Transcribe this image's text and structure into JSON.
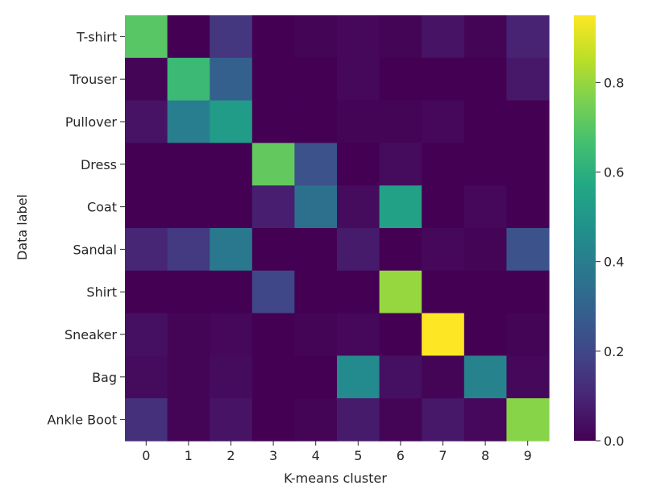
{
  "chart_data": {
    "type": "heatmap",
    "title": "",
    "xlabel": "K-means cluster",
    "ylabel": "Data label",
    "x_categories": [
      "0",
      "1",
      "2",
      "3",
      "4",
      "5",
      "6",
      "7",
      "8",
      "9"
    ],
    "y_categories": [
      "T-shirt",
      "Trouser",
      "Pullover",
      "Dress",
      "Coat",
      "Sandal",
      "Shirt",
      "Sneaker",
      "Bag",
      "Ankle Boot"
    ],
    "values": [
      [
        0.7,
        0.0,
        0.15,
        0.0,
        0.01,
        0.02,
        0.01,
        0.05,
        0.01,
        0.09
      ],
      [
        0.01,
        0.64,
        0.29,
        0.0,
        0.0,
        0.02,
        0.0,
        0.0,
        0.0,
        0.06
      ],
      [
        0.05,
        0.4,
        0.52,
        0.0,
        0.0,
        0.01,
        0.01,
        0.02,
        0.0,
        0.0
      ],
      [
        0.0,
        0.0,
        0.0,
        0.72,
        0.24,
        0.0,
        0.03,
        0.0,
        0.0,
        0.0
      ],
      [
        0.0,
        0.0,
        0.0,
        0.08,
        0.35,
        0.03,
        0.54,
        0.0,
        0.02,
        0.0
      ],
      [
        0.1,
        0.16,
        0.38,
        0.0,
        0.0,
        0.07,
        0.0,
        0.02,
        0.01,
        0.24
      ],
      [
        0.0,
        0.0,
        0.0,
        0.2,
        0.0,
        0.0,
        0.8,
        0.0,
        0.0,
        0.0
      ],
      [
        0.04,
        0.01,
        0.02,
        0.0,
        0.01,
        0.02,
        0.0,
        0.95,
        0.0,
        0.01
      ],
      [
        0.03,
        0.01,
        0.03,
        0.0,
        0.0,
        0.45,
        0.04,
        0.01,
        0.42,
        0.02
      ],
      [
        0.13,
        0.01,
        0.05,
        0.0,
        0.01,
        0.07,
        0.01,
        0.06,
        0.02,
        0.78
      ]
    ],
    "vmin": 0.0,
    "vmax": 0.95,
    "colormap": "viridis",
    "colorbar_ticks": [
      0.0,
      0.2,
      0.4,
      0.6,
      0.8
    ],
    "colorbar_tick_labels": [
      "0.0",
      "0.2",
      "0.4",
      "0.6",
      "0.8"
    ]
  }
}
